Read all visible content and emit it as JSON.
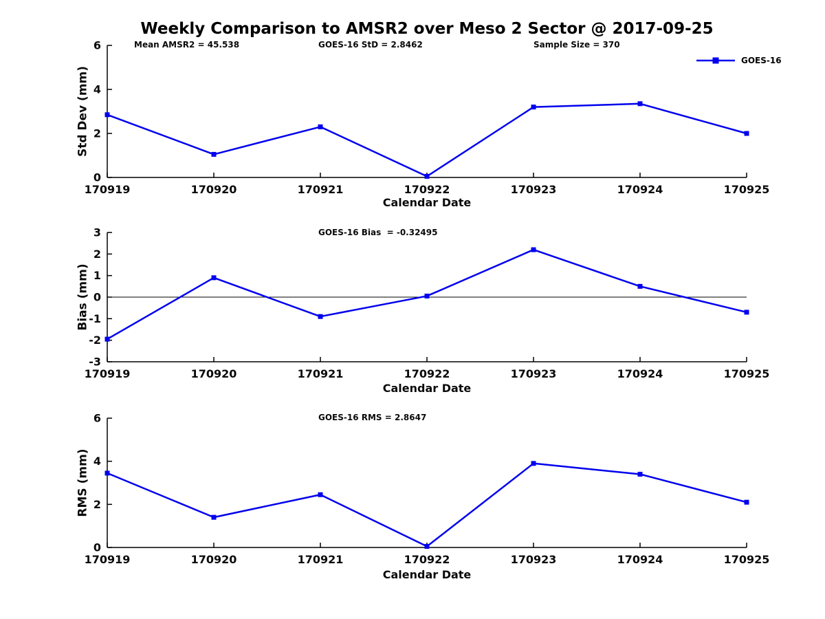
{
  "title": "Weekly Comparison to AMSR2 over Meso 2 Sector @ 2017-09-25",
  "colors": {
    "series_line": "#0000EE",
    "axis": "#000000",
    "text": "#0a0a0a",
    "zero_line": "#000000",
    "background": "#ffffff"
  },
  "chart_data": [
    {
      "type": "line",
      "name": "std-dev",
      "title": "Weekly Comparison to AMSR2 over Meso 2 Sector @ 2017-09-25",
      "annotations": [
        "Mean AMSR2 = 45.538",
        "GOES-16 StD = 2.8462",
        "Sample Size = 370"
      ],
      "xlabel": "Calendar Date",
      "ylabel": "Std Dev (mm)",
      "categories": [
        "170919",
        "170920",
        "170921",
        "170922",
        "170923",
        "170924",
        "170925"
      ],
      "series": [
        {
          "name": "GOES-16",
          "values": [
            2.85,
            1.05,
            2.3,
            0.05,
            3.2,
            3.35,
            2.0
          ]
        }
      ],
      "ylim": [
        0,
        6
      ],
      "yticks": [
        0,
        2,
        4,
        6
      ],
      "grid": false,
      "zero_line": false,
      "marker": "square",
      "legend": {
        "label": "GOES-16",
        "position": "top-right"
      }
    },
    {
      "type": "line",
      "name": "bias",
      "annotation": "GOES-16 Bias  = -0.32495",
      "xlabel": "Calendar Date",
      "ylabel": "Bias (mm)",
      "categories": [
        "170919",
        "170920",
        "170921",
        "170922",
        "170923",
        "170924",
        "170925"
      ],
      "series": [
        {
          "name": "GOES-16",
          "values": [
            -1.95,
            0.9,
            -0.9,
            0.05,
            2.2,
            0.5,
            -0.7
          ]
        }
      ],
      "ylim": [
        -3,
        3
      ],
      "yticks": [
        -3,
        -2,
        -1,
        0,
        1,
        2,
        3
      ],
      "grid": false,
      "zero_line": true,
      "marker": "square"
    },
    {
      "type": "line",
      "name": "rms",
      "annotation": "GOES-16 RMS = 2.8647",
      "xlabel": "Calendar Date",
      "ylabel": "RMS (mm)",
      "categories": [
        "170919",
        "170920",
        "170921",
        "170922",
        "170923",
        "170924",
        "170925"
      ],
      "series": [
        {
          "name": "GOES-16",
          "values": [
            3.45,
            1.4,
            2.45,
            0.05,
            3.9,
            3.4,
            2.1
          ]
        }
      ],
      "ylim": [
        0,
        6
      ],
      "yticks": [
        0,
        2,
        4,
        6
      ],
      "grid": false,
      "zero_line": false,
      "marker": "square"
    }
  ]
}
